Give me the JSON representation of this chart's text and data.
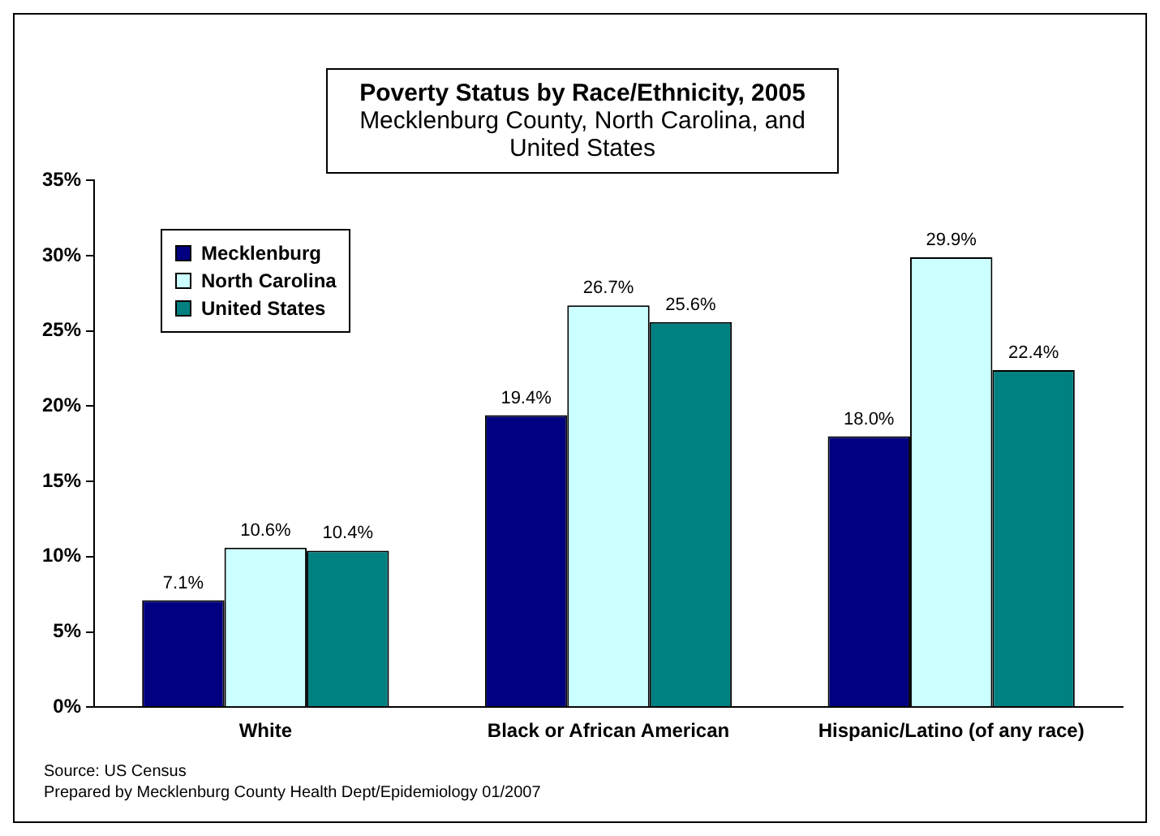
{
  "chart_data": {
    "type": "bar",
    "title": "Poverty Status by Race/Ethnicity, 2005",
    "subtitle": "Mecklenburg County, North Carolina, and United States",
    "categories": [
      "White",
      "Black or African American",
      "Hispanic/Latino (of any race)"
    ],
    "series": [
      {
        "name": "Mecklenburg",
        "color": "#000080",
        "values": [
          7.1,
          19.4,
          18.0
        ],
        "value_labels": [
          "7.1%",
          "19.4%",
          "18.0%"
        ]
      },
      {
        "name": "North Carolina",
        "color": "#ccffff",
        "values": [
          10.6,
          26.7,
          29.9
        ],
        "value_labels": [
          "10.6%",
          "26.7%",
          "29.9%"
        ]
      },
      {
        "name": "United States",
        "color": "#008080",
        "values": [
          10.4,
          25.6,
          22.4
        ],
        "value_labels": [
          "10.4%",
          "25.6%",
          "22.4%"
        ]
      }
    ],
    "ylim": [
      0,
      35
    ],
    "yticks": [
      {
        "value": 0,
        "label": "0%"
      },
      {
        "value": 5,
        "label": "5%"
      },
      {
        "value": 10,
        "label": "10%"
      },
      {
        "value": 15,
        "label": "15%"
      },
      {
        "value": 20,
        "label": "20%"
      },
      {
        "value": 25,
        "label": "25%"
      },
      {
        "value": 30,
        "label": "30%"
      },
      {
        "value": 35,
        "label": "35%"
      }
    ],
    "grid": false,
    "legend": "top left",
    "annotations": [
      "Source: US Census",
      "Prepared by Mecklenburg County Health Dept/Epidemiology 01/2007"
    ]
  }
}
